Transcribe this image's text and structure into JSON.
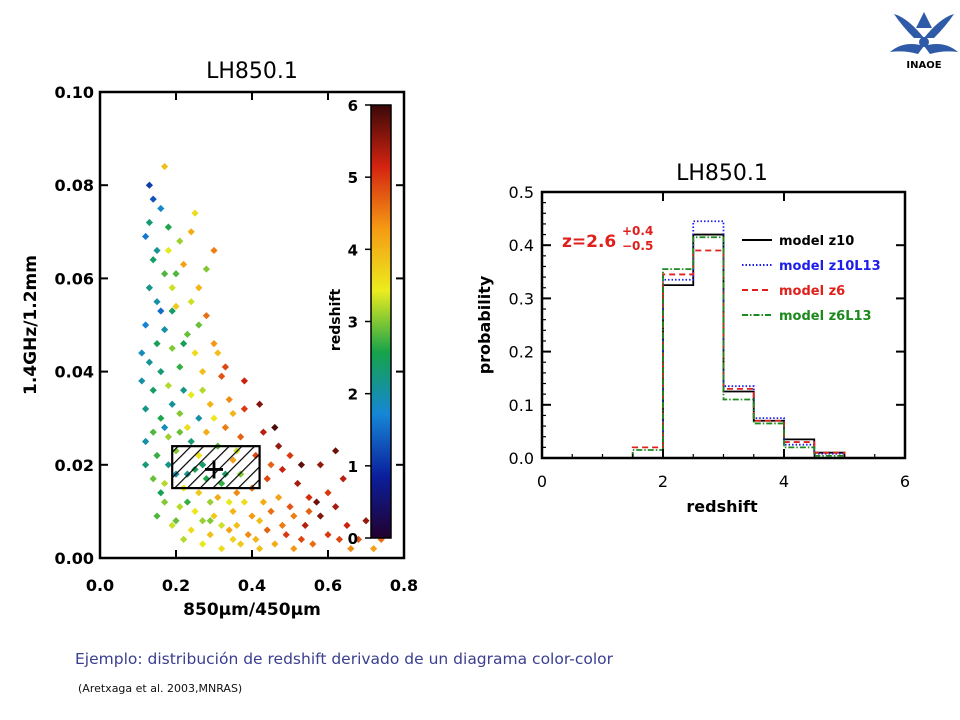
{
  "logo": {
    "text": "INAOE",
    "color": "#2f5aa8"
  },
  "caption": "Ejemplo: distribución de redshift derivado de un diagrama color-color",
  "citation": "(Aretxaga et al. 2003,MNRAS)",
  "chart_data": [
    {
      "type": "scatter",
      "title": "LH850.1",
      "xlabel": "850μm/450μm",
      "ylabel": "1.4GHz/1.2mm",
      "xlim": [
        0.0,
        0.8
      ],
      "ylim": [
        0.0,
        0.1
      ],
      "xticks": [
        "0.0",
        "0.2",
        "0.4",
        "0.6",
        "0.8"
      ],
      "yticks": [
        "0.00",
        "0.02",
        "0.04",
        "0.06",
        "0.08",
        "0.10"
      ],
      "colorbar": {
        "label": "redshift",
        "range": [
          0,
          6
        ],
        "ticks": [
          "0",
          "1",
          "2",
          "3",
          "4",
          "5",
          "6"
        ],
        "colors": [
          "#22002e",
          "#0a1f9c",
          "#1686d6",
          "#16a34a",
          "#ecec1e",
          "#f59a14",
          "#d42410",
          "#3a0808"
        ]
      },
      "region": {
        "x": [
          0.19,
          0.42
        ],
        "y": [
          0.015,
          0.024
        ]
      },
      "marker": {
        "x": 0.3,
        "y": 0.019
      },
      "points": [
        [
          0.14,
          0.077,
          1.3
        ],
        [
          0.16,
          0.075,
          1.8
        ],
        [
          0.13,
          0.072,
          2.3
        ],
        [
          0.12,
          0.069,
          1.6
        ],
        [
          0.18,
          0.071,
          2.6
        ],
        [
          0.15,
          0.066,
          2.1
        ],
        [
          0.21,
          0.068,
          3.1
        ],
        [
          0.25,
          0.074,
          3.6
        ],
        [
          0.22,
          0.063,
          4.2
        ],
        [
          0.17,
          0.061,
          2.8
        ],
        [
          0.19,
          0.058,
          3.3
        ],
        [
          0.14,
          0.064,
          2.4
        ],
        [
          0.13,
          0.058,
          2.2
        ],
        [
          0.2,
          0.054,
          3.8
        ],
        [
          0.26,
          0.058,
          4.0
        ],
        [
          0.28,
          0.052,
          4.6
        ],
        [
          0.23,
          0.048,
          2.9
        ],
        [
          0.17,
          0.049,
          2.0
        ],
        [
          0.12,
          0.05,
          1.7
        ],
        [
          0.15,
          0.046,
          2.5
        ],
        [
          0.19,
          0.045,
          3.0
        ],
        [
          0.25,
          0.044,
          3.6
        ],
        [
          0.3,
          0.046,
          4.3
        ],
        [
          0.32,
          0.039,
          4.8
        ],
        [
          0.27,
          0.04,
          3.9
        ],
        [
          0.21,
          0.041,
          2.7
        ],
        [
          0.16,
          0.04,
          2.3
        ],
        [
          0.13,
          0.042,
          2.1
        ],
        [
          0.11,
          0.044,
          1.9
        ],
        [
          0.18,
          0.037,
          3.2
        ],
        [
          0.14,
          0.036,
          2.4
        ],
        [
          0.11,
          0.038,
          2.0
        ],
        [
          0.24,
          0.035,
          3.4
        ],
        [
          0.34,
          0.034,
          4.4
        ],
        [
          0.38,
          0.032,
          5.0
        ],
        [
          0.29,
          0.033,
          4.0
        ],
        [
          0.21,
          0.031,
          3.0
        ],
        [
          0.16,
          0.03,
          2.6
        ],
        [
          0.12,
          0.032,
          2.2
        ],
        [
          0.14,
          0.027,
          2.8
        ],
        [
          0.18,
          0.026,
          3.1
        ],
        [
          0.23,
          0.028,
          3.6
        ],
        [
          0.28,
          0.027,
          4.1
        ],
        [
          0.33,
          0.028,
          4.5
        ],
        [
          0.37,
          0.026,
          4.7
        ],
        [
          0.43,
          0.027,
          5.3
        ],
        [
          0.47,
          0.024,
          5.5
        ],
        [
          0.41,
          0.022,
          4.9
        ],
        [
          0.35,
          0.021,
          4.2
        ],
        [
          0.26,
          0.022,
          3.5
        ],
        [
          0.2,
          0.023,
          3.0
        ],
        [
          0.15,
          0.022,
          2.7
        ],
        [
          0.12,
          0.02,
          2.3
        ],
        [
          0.14,
          0.017,
          2.9
        ],
        [
          0.17,
          0.016,
          3.2
        ],
        [
          0.22,
          0.015,
          3.4
        ],
        [
          0.26,
          0.014,
          3.8
        ],
        [
          0.31,
          0.013,
          4.1
        ],
        [
          0.36,
          0.014,
          4.4
        ],
        [
          0.4,
          0.015,
          4.6
        ],
        [
          0.44,
          0.017,
          4.9
        ],
        [
          0.48,
          0.019,
          5.2
        ],
        [
          0.52,
          0.016,
          5.4
        ],
        [
          0.55,
          0.013,
          5.1
        ],
        [
          0.5,
          0.011,
          4.8
        ],
        [
          0.45,
          0.01,
          4.6
        ],
        [
          0.4,
          0.009,
          4.3
        ],
        [
          0.35,
          0.01,
          4.0
        ],
        [
          0.3,
          0.009,
          3.8
        ],
        [
          0.25,
          0.01,
          3.5
        ],
        [
          0.21,
          0.011,
          3.2
        ],
        [
          0.17,
          0.012,
          3.0
        ],
        [
          0.15,
          0.009,
          2.8
        ],
        [
          0.19,
          0.007,
          3.3
        ],
        [
          0.24,
          0.006,
          3.6
        ],
        [
          0.29,
          0.005,
          3.9
        ],
        [
          0.34,
          0.006,
          4.2
        ],
        [
          0.39,
          0.005,
          4.4
        ],
        [
          0.44,
          0.006,
          4.7
        ],
        [
          0.49,
          0.005,
          5.0
        ],
        [
          0.54,
          0.007,
          5.3
        ],
        [
          0.58,
          0.009,
          5.6
        ],
        [
          0.62,
          0.011,
          5.4
        ],
        [
          0.6,
          0.005,
          5.0
        ],
        [
          0.56,
          0.003,
          4.6
        ],
        [
          0.51,
          0.002,
          4.3
        ],
        [
          0.46,
          0.003,
          4.1
        ],
        [
          0.42,
          0.002,
          3.9
        ],
        [
          0.37,
          0.003,
          3.8
        ],
        [
          0.32,
          0.002,
          3.6
        ],
        [
          0.27,
          0.003,
          3.4
        ],
        [
          0.22,
          0.004,
          3.2
        ],
        [
          0.65,
          0.007,
          5.2
        ],
        [
          0.68,
          0.004,
          4.8
        ],
        [
          0.7,
          0.008,
          5.5
        ],
        [
          0.74,
          0.004,
          4.6
        ],
        [
          0.72,
          0.002,
          4.2
        ],
        [
          0.66,
          0.002,
          4.4
        ],
        [
          0.63,
          0.004,
          4.9
        ],
        [
          0.57,
          0.012,
          5.7
        ],
        [
          0.53,
          0.02,
          5.8
        ],
        [
          0.46,
          0.028,
          5.9
        ],
        [
          0.42,
          0.033,
          5.6
        ],
        [
          0.38,
          0.038,
          5.2
        ],
        [
          0.33,
          0.041,
          4.9
        ],
        [
          0.28,
          0.062,
          3.0
        ],
        [
          0.24,
          0.055,
          3.3
        ],
        [
          0.3,
          0.066,
          4.5
        ],
        [
          0.17,
          0.084,
          3.9
        ],
        [
          0.13,
          0.08,
          1.1
        ],
        [
          0.19,
          0.053,
          2.4
        ],
        [
          0.16,
          0.053,
          1.5
        ],
        [
          0.22,
          0.036,
          2.2
        ],
        [
          0.26,
          0.03,
          2.0
        ],
        [
          0.19,
          0.033,
          2.1
        ],
        [
          0.17,
          0.028,
          1.9
        ],
        [
          0.24,
          0.025,
          2.3
        ],
        [
          0.28,
          0.017,
          2.6
        ],
        [
          0.33,
          0.018,
          2.4
        ],
        [
          0.23,
          0.018,
          2.2
        ],
        [
          0.2,
          0.018,
          2.0
        ],
        [
          0.37,
          0.018,
          3.0
        ],
        [
          0.31,
          0.024,
          2.8
        ],
        [
          0.36,
          0.023,
          3.3
        ],
        [
          0.27,
          0.02,
          2.4
        ],
        [
          0.25,
          0.019,
          2.5
        ],
        [
          0.32,
          0.016,
          2.7
        ],
        [
          0.18,
          0.02,
          2.2
        ],
        [
          0.29,
          0.012,
          3.1
        ],
        [
          0.34,
          0.012,
          3.4
        ],
        [
          0.38,
          0.012,
          3.6
        ],
        [
          0.23,
          0.012,
          2.7
        ],
        [
          0.27,
          0.008,
          3.1
        ],
        [
          0.32,
          0.007,
          3.3
        ],
        [
          0.42,
          0.008,
          3.9
        ],
        [
          0.47,
          0.013,
          4.2
        ],
        [
          0.51,
          0.009,
          4.5
        ],
        [
          0.55,
          0.01,
          4.7
        ],
        [
          0.6,
          0.014,
          5.0
        ],
        [
          0.64,
          0.017,
          5.3
        ],
        [
          0.58,
          0.02,
          5.5
        ],
        [
          0.62,
          0.023,
          5.7
        ],
        [
          0.5,
          0.022,
          5.0
        ],
        [
          0.45,
          0.02,
          4.7
        ],
        [
          0.43,
          0.012,
          4.1
        ],
        [
          0.36,
          0.007,
          3.9
        ],
        [
          0.2,
          0.008,
          2.9
        ],
        [
          0.16,
          0.014,
          2.5
        ],
        [
          0.21,
          0.027,
          2.9
        ],
        [
          0.12,
          0.025,
          2.0
        ],
        [
          0.3,
          0.03,
          3.5
        ],
        [
          0.35,
          0.031,
          4.0
        ],
        [
          0.27,
          0.036,
          3.2
        ],
        [
          0.31,
          0.044,
          3.9
        ],
        [
          0.22,
          0.046,
          2.5
        ],
        [
          0.26,
          0.05,
          2.9
        ],
        [
          0.2,
          0.061,
          2.8
        ],
        [
          0.18,
          0.066,
          3.4
        ],
        [
          0.24,
          0.07,
          4.1
        ],
        [
          0.15,
          0.055,
          2.0
        ],
        [
          0.29,
          0.008,
          3.0
        ],
        [
          0.41,
          0.004,
          4.0
        ],
        [
          0.35,
          0.004,
          3.7
        ],
        [
          0.53,
          0.004,
          4.9
        ],
        [
          0.48,
          0.007,
          4.5
        ]
      ]
    },
    {
      "type": "line",
      "title": "LH850.1",
      "xlabel": "redshift",
      "ylabel": "probability",
      "xlim": [
        0,
        6
      ],
      "ylim": [
        0.0,
        0.5
      ],
      "xticks": [
        "0",
        "2",
        "4",
        "6"
      ],
      "yticks": [
        "0.0",
        "0.1",
        "0.2",
        "0.3",
        "0.4",
        "0.5"
      ],
      "annotation": {
        "base": "z=2.6",
        "plus": "+0.4",
        "minus": "−0.5",
        "color": "#e0201c"
      },
      "bin_edges": [
        1.5,
        2.0,
        2.5,
        3.0,
        3.5,
        4.0,
        4.5,
        5.0
      ],
      "series": [
        {
          "name": "model z10",
          "color": "#000000",
          "dash": "",
          "values": [
            0.0,
            0.325,
            0.42,
            0.125,
            0.07,
            0.035,
            0.01
          ]
        },
        {
          "name": "model z10L13",
          "color": "#1e1eea",
          "dash": "1.5 2",
          "values": [
            0.0,
            0.335,
            0.445,
            0.135,
            0.075,
            0.025,
            0.008
          ]
        },
        {
          "name": "model z6",
          "color": "#e0201c",
          "dash": "6 4",
          "values": [
            0.02,
            0.345,
            0.39,
            0.13,
            0.07,
            0.03,
            0.01
          ]
        },
        {
          "name": "model z6L13",
          "color": "#1c8a1c",
          "dash": "6 2 1.5 2",
          "values": [
            0.015,
            0.355,
            0.415,
            0.11,
            0.065,
            0.02,
            0.004
          ]
        }
      ]
    }
  ]
}
